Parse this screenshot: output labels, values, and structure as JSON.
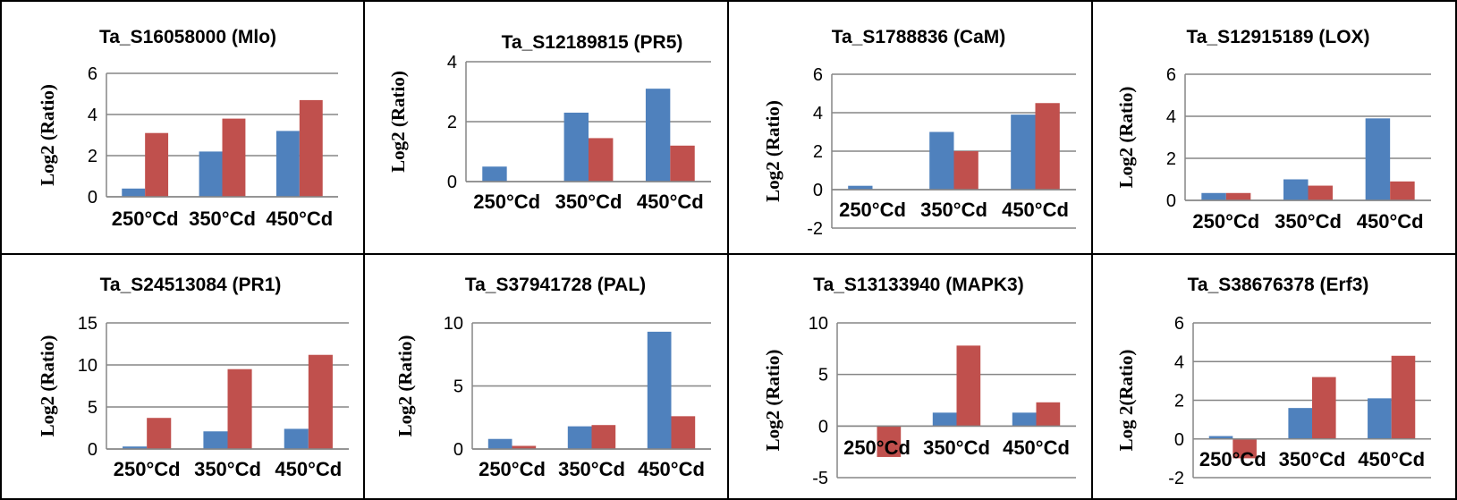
{
  "colors": {
    "series_blue": "#4F81BD",
    "series_red": "#C0504D",
    "gridline": "#868686",
    "panel_border": "#000000"
  },
  "chart_data": [
    {
      "type": "bar",
      "title": "Ta_S16058000 (Mlo)",
      "ylabel": "Log2 (Ratio)",
      "categories": [
        "250°Cd",
        "350°Cd",
        "450°Cd"
      ],
      "yticks": [
        "0",
        "2",
        "4",
        "6"
      ],
      "ylim": [
        0,
        6
      ],
      "grid": true,
      "series": [
        {
          "values": [
            0.4,
            2.2,
            3.2
          ]
        },
        {
          "values": [
            3.1,
            3.8,
            4.7
          ]
        }
      ]
    },
    {
      "type": "bar",
      "title": "Ta_S12189815 (PR5)",
      "ylabel": "Log2 (Ratio)",
      "categories": [
        "250°Cd",
        "350°Cd",
        "450°Cd"
      ],
      "yticks": [
        "0",
        "2",
        "4"
      ],
      "ylim": [
        0,
        4
      ],
      "grid": true,
      "series": [
        {
          "values": [
            0.5,
            2.3,
            3.1
          ]
        },
        {
          "values": [
            0,
            1.45,
            1.2
          ]
        }
      ]
    },
    {
      "type": "bar",
      "title": "Ta_S1788836 (CaM)",
      "ylabel": "Log2 (Ratio)",
      "categories": [
        "250°Cd",
        "350°Cd",
        "450°Cd"
      ],
      "yticks": [
        "-2",
        "0",
        "2",
        "4",
        "6"
      ],
      "ylim": [
        -2,
        6
      ],
      "grid": true,
      "series": [
        {
          "values": [
            0.2,
            3.0,
            3.9
          ]
        },
        {
          "values": [
            0,
            2.0,
            4.5
          ]
        }
      ]
    },
    {
      "type": "bar",
      "title": "Ta_S12915189 (LOX)",
      "ylabel": "Log2 (Ratio)",
      "categories": [
        "250°Cd",
        "350°Cd",
        "450°Cd"
      ],
      "yticks": [
        "0",
        "2",
        "4",
        "6"
      ],
      "ylim": [
        0,
        6
      ],
      "grid": true,
      "series": [
        {
          "values": [
            0.35,
            1.0,
            3.9
          ]
        },
        {
          "values": [
            0.35,
            0.7,
            0.9
          ]
        }
      ]
    },
    {
      "type": "bar",
      "title": "Ta_S24513084 (PR1)",
      "ylabel": "Log2 (Ratio)",
      "categories": [
        "250°Cd",
        "350°Cd",
        "450°Cd"
      ],
      "yticks": [
        "0",
        "5",
        "10",
        "15"
      ],
      "ylim": [
        0,
        15
      ],
      "grid": true,
      "series": [
        {
          "values": [
            0.3,
            2.1,
            2.4
          ]
        },
        {
          "values": [
            3.7,
            9.5,
            11.2
          ]
        }
      ]
    },
    {
      "type": "bar",
      "title": "Ta_S37941728 (PAL)",
      "ylabel": "Log2 (Ratio)",
      "categories": [
        "250°Cd",
        "350°Cd",
        "450°Cd"
      ],
      "yticks": [
        "0",
        "5",
        "10"
      ],
      "ylim": [
        0,
        10
      ],
      "grid": true,
      "series": [
        {
          "values": [
            0.8,
            1.8,
            9.3
          ]
        },
        {
          "values": [
            0.25,
            1.9,
            2.6
          ]
        }
      ]
    },
    {
      "type": "bar",
      "title": "Ta_S13133940 (MAPK3)",
      "ylabel": "Log2 (Ratio)",
      "categories": [
        "250°Cd",
        "350°Cd",
        "450°Cd"
      ],
      "yticks": [
        "-5",
        "0",
        "5",
        "10"
      ],
      "ylim": [
        -5,
        10
      ],
      "grid": true,
      "series": [
        {
          "values": [
            0,
            1.3,
            1.3
          ]
        },
        {
          "values": [
            -3.0,
            7.8,
            2.3
          ]
        }
      ]
    },
    {
      "type": "bar",
      "title": "Ta_S38676378 (Erf3)",
      "ylabel": "Log 2(Ratio)",
      "categories": [
        "250°Cd",
        "350°Cd",
        "450°Cd"
      ],
      "yticks": [
        "-2",
        "0",
        "2",
        "4",
        "6"
      ],
      "ylim": [
        -2,
        6
      ],
      "grid": true,
      "series": [
        {
          "values": [
            0.15,
            1.6,
            2.1
          ]
        },
        {
          "values": [
            -1.0,
            3.2,
            4.3
          ]
        }
      ]
    }
  ]
}
